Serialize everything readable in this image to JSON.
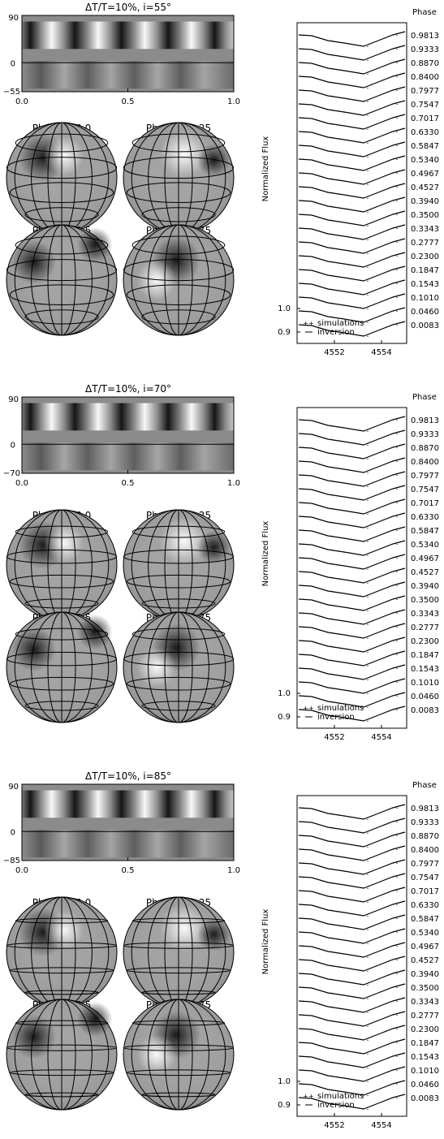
{
  "figure": {
    "map_xticks": [
      "0.0",
      "0.5",
      "1.0"
    ],
    "phase_header": "Phase",
    "ylabel": "Normalized Flux",
    "ytick_1": "1.0",
    "ytick_09": "0.9",
    "xticks": [
      "4552",
      "4554"
    ],
    "legend": {
      "sim_symbol": "++",
      "sim_label": "simulations",
      "inv_label": "inversion"
    },
    "phases": [
      "0.9813",
      "0.9333",
      "0.8870",
      "0.8400",
      "0.7977",
      "0.7547",
      "0.7017",
      "0.6330",
      "0.5847",
      "0.5340",
      "0.4967",
      "0.4527",
      "0.3940",
      "0.3500",
      "0.3343",
      "0.2777",
      "0.2300",
      "0.1847",
      "0.1543",
      "0.1010",
      "0.0460",
      "0.0083"
    ],
    "globe_labels": [
      "Phase = 0.0",
      "Phase = 0.25",
      "Phase = 0.5",
      "Phase = 0.75"
    ],
    "panels": [
      {
        "title": "ΔT/T=10%, i=55°",
        "ytick_top": "90",
        "ytick_mid": "0",
        "ytick_bottom": "−55"
      },
      {
        "title": "ΔT/T=10%, i=70°",
        "ytick_top": "90",
        "ytick_mid": "0",
        "ytick_bottom": "−70"
      },
      {
        "title": "ΔT/T=10%, i=85°",
        "ytick_top": "90",
        "ytick_mid": "0",
        "ytick_bottom": "−85"
      }
    ]
  }
}
